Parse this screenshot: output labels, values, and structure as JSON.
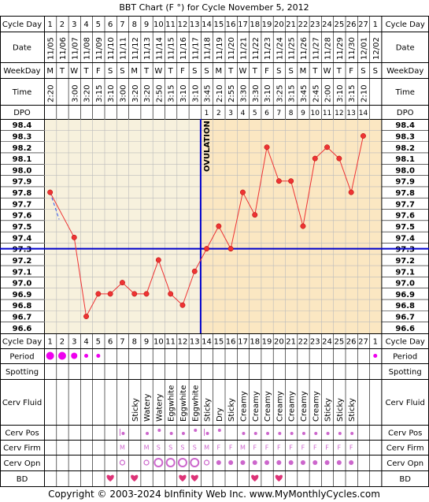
{
  "title": "BBT Chart (F °) for Cycle November 5, 2012",
  "copyright": "Copyright © 2003-2024 bInfinity Web Inc.    www.MyMonthlyCycles.com",
  "row_labels": {
    "cycle_day": "Cycle Day",
    "date": "Date",
    "weekday": "WeekDay",
    "time": "Time",
    "dpo": "DPO",
    "period": "Period",
    "spotting": "Spotting",
    "cerv_fluid": "Cerv Fluid",
    "cerv_pos": "Cerv Pos",
    "cerv_firm": "Cerv Firm",
    "cerv_opn": "Cerv Opn",
    "bd": "BD"
  },
  "ovulation_label": "OVULATION",
  "colors": {
    "pre_ovulation_bg": "#f7f1dd",
    "post_ovulation_bg": "#fbe7c2",
    "temp_line": "#ee3333",
    "coverline": "#0000cc",
    "grid": "#bbbbbb",
    "period": "#ee00ee",
    "marker": "#cc66cc",
    "heart": "#dd3377"
  },
  "chart_data": {
    "type": "line",
    "cycle_days": [
      "1",
      "2",
      "3",
      "4",
      "5",
      "6",
      "7",
      "8",
      "9",
      "10",
      "11",
      "12",
      "13",
      "14",
      "15",
      "16",
      "17",
      "18",
      "19",
      "20",
      "21",
      "22",
      "23",
      "24",
      "25",
      "26",
      "27",
      "1"
    ],
    "dates": [
      "11/05",
      "11/06",
      "11/07",
      "11/08",
      "11/09",
      "11/10",
      "11/11",
      "11/12",
      "11/13",
      "11/14",
      "11/15",
      "11/16",
      "11/17",
      "11/18",
      "11/19",
      "11/20",
      "11/21",
      "11/22",
      "11/23",
      "11/24",
      "11/25",
      "11/26",
      "11/27",
      "11/28",
      "11/29",
      "11/30",
      "12/01",
      "12/02"
    ],
    "weekdays": [
      "M",
      "T",
      "W",
      "T",
      "F",
      "S",
      "S",
      "M",
      "T",
      "W",
      "T",
      "F",
      "S",
      "S",
      "M",
      "T",
      "W",
      "T",
      "F",
      "S",
      "S",
      "M",
      "T",
      "W",
      "T",
      "F",
      "S",
      "S"
    ],
    "times": [
      "2:20",
      "",
      "3:00",
      "3:20",
      "3:15",
      "3:10",
      "3:00",
      "3:20",
      "3:20",
      "2:50",
      "3:15",
      "3:10",
      "3:10",
      "3:45",
      "2:10",
      "2:55",
      "3:30",
      "3:30",
      "3:10",
      "3:25",
      "3:15",
      "3:45",
      "2:45",
      "2:00",
      "3:10",
      "3:15",
      "2:10",
      ""
    ],
    "dpo": [
      "",
      "",
      "",
      "",
      "",
      "",
      "",
      "",
      "",
      "",
      "",
      "",
      "",
      "1",
      "2",
      "3",
      "4",
      "5",
      "6",
      "7",
      "8",
      "9",
      "10",
      "11",
      "12",
      "13",
      "14",
      ""
    ],
    "temperatures": [
      97.8,
      null,
      97.4,
      96.7,
      96.9,
      96.9,
      97.0,
      96.9,
      96.9,
      97.2,
      96.9,
      96.8,
      97.1,
      97.3,
      97.5,
      97.3,
      97.8,
      97.6,
      98.2,
      97.9,
      97.9,
      97.5,
      98.1,
      98.2,
      98.1,
      97.8,
      98.3,
      null
    ],
    "y_ticks": [
      98.4,
      98.3,
      98.2,
      98.1,
      98.0,
      97.9,
      97.8,
      97.7,
      97.6,
      97.5,
      97.4,
      97.3,
      97.2,
      97.1,
      97.0,
      96.9,
      96.8,
      96.7,
      96.6
    ],
    "ylim": [
      96.6,
      98.4
    ],
    "coverline": 97.3,
    "ovulation_after_day_index": 12,
    "period": [
      "heavy",
      "heavy",
      "medium",
      "light",
      "light",
      "",
      "",
      "",
      "",
      "",
      "",
      "",
      "",
      "",
      "",
      "",
      "",
      "",
      "",
      "",
      "",
      "",
      "",
      "",
      "",
      "",
      "",
      "light"
    ],
    "cerv_fluid": [
      "",
      "",
      "",
      "",
      "",
      "",
      "",
      "Sticky",
      "Watery",
      "Watery",
      "Eggwhite",
      "Eggwhite",
      "Eggwhite",
      "Sticky",
      "Dry",
      "Sticky",
      "Creamy",
      "Creamy",
      "Creamy",
      "Creamy",
      "Creamy",
      "Creamy",
      "Creamy",
      "Sticky",
      "Sticky",
      "Sticky",
      "",
      ""
    ],
    "cerv_pos": [
      "",
      "",
      "",
      "",
      "",
      "",
      "low",
      "",
      "low",
      "medium",
      "low",
      "low",
      "medium",
      "low",
      "medium",
      "",
      "low",
      "low",
      "low",
      "low",
      "low",
      "low",
      "low",
      "low",
      "low",
      "low",
      "",
      ""
    ],
    "cerv_firm": [
      "",
      "",
      "",
      "",
      "",
      "",
      "M",
      "",
      "M",
      "S",
      "S",
      "S",
      "S",
      "M",
      "F",
      "F",
      "M",
      "F",
      "F",
      "F",
      "F",
      "F",
      "F",
      "F",
      "F",
      "F",
      "",
      ""
    ],
    "cerv_opn": [
      "",
      "",
      "",
      "",
      "",
      "",
      "small",
      "",
      "small",
      "large",
      "large",
      "large",
      "large",
      "small",
      "dot",
      "dot",
      "dot",
      "dot",
      "dot",
      "dot",
      "dot",
      "dot",
      "dot",
      "dot",
      "dot",
      "dot",
      "",
      ""
    ],
    "bd": [
      false,
      false,
      false,
      false,
      false,
      true,
      false,
      true,
      false,
      false,
      false,
      true,
      true,
      false,
      false,
      false,
      false,
      true,
      false,
      true,
      false,
      false,
      false,
      false,
      false,
      false,
      false,
      false
    ]
  }
}
